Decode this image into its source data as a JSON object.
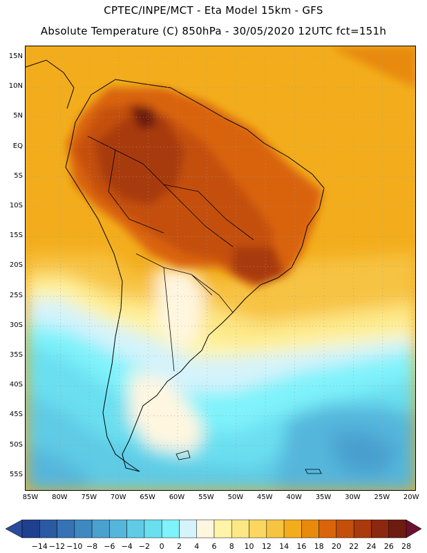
{
  "header": {
    "title_line1": "CPTEC/INPE/MCT -  Eta Model 15km - GFS",
    "title_line2": "Absolute Temperature (C) 850hPa - 30/05/2020 12UTC fct=151h"
  },
  "map": {
    "lat_labels": [
      "15N",
      "10N",
      "5N",
      "EQ",
      "5S",
      "10S",
      "15S",
      "20S",
      "25S",
      "30S",
      "35S",
      "40S",
      "45S",
      "50S",
      "55S"
    ],
    "lon_labels": [
      "85W",
      "80W",
      "75W",
      "70W",
      "65W",
      "60W",
      "55W",
      "50W",
      "45W",
      "40W",
      "35W",
      "30W",
      "25W",
      "20W"
    ],
    "field": "temperature-850hPa"
  },
  "colorbar": {
    "labels": [
      "-14",
      "-12",
      "-10",
      "-8",
      "-6",
      "-4",
      "-2",
      "0",
      "2",
      "4",
      "6",
      "8",
      "10",
      "12",
      "14",
      "16",
      "18",
      "20",
      "22",
      "24",
      "26",
      "28"
    ],
    "colors": [
      "#1f3f8f",
      "#2a5aa2",
      "#3573b4",
      "#3f89c2",
      "#4aa0cf",
      "#55b6dc",
      "#5fcbe5",
      "#6adff0",
      "#7ff2fb",
      "#d4f3fb",
      "#fff6e0",
      "#fff4a8",
      "#fde784",
      "#fbd75f",
      "#f7c343",
      "#f3ad1c",
      "#e88a0c",
      "#d9640a",
      "#c44f0a",
      "#a83a0b",
      "#8c280f",
      "#6e1c10"
    ],
    "under_color": "#2a4a9a",
    "over_color": "#6a1030"
  }
}
